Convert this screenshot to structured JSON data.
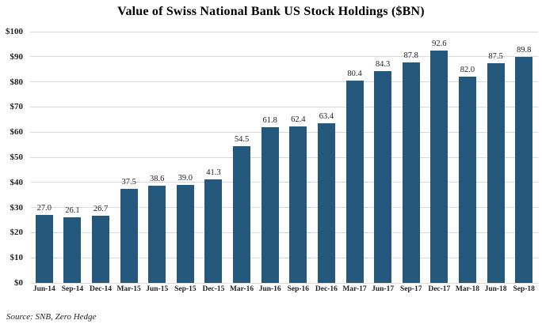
{
  "chart_data": {
    "type": "bar",
    "title": "Value of Swiss National Bank US Stock Holdings ($BN)",
    "categories": [
      "Jun-14",
      "Sep-14",
      "Dec-14",
      "Mar-15",
      "Jun-15",
      "Sep-15",
      "Dec-15",
      "Mar-16",
      "Jun-16",
      "Sep-16",
      "Dec-16",
      "Mar-17",
      "Jun-17",
      "Sep-17",
      "Dec-17",
      "Mar-18",
      "Jun-18",
      "Sep-18"
    ],
    "values": [
      27.0,
      26.1,
      26.7,
      37.5,
      38.6,
      39.0,
      41.3,
      54.5,
      61.8,
      62.4,
      63.4,
      80.4,
      84.3,
      87.8,
      92.6,
      82.0,
      87.5,
      89.8
    ],
    "xlabel": "",
    "ylabel": "",
    "ylim": [
      0,
      100
    ],
    "yticks": [
      0,
      10,
      20,
      30,
      40,
      50,
      60,
      70,
      80,
      90,
      100
    ],
    "ytick_prefix": "$",
    "value_label_decimals": 1,
    "grid": true,
    "legend_position": "none",
    "data_labels": true
  },
  "source_note": "Source: SNB, Zero Hedge",
  "colors": {
    "bar": "#24587d",
    "gridline": "#d9d9d9",
    "background": "#ffffff",
    "title_text": "#000000",
    "label_text": "#222222"
  }
}
